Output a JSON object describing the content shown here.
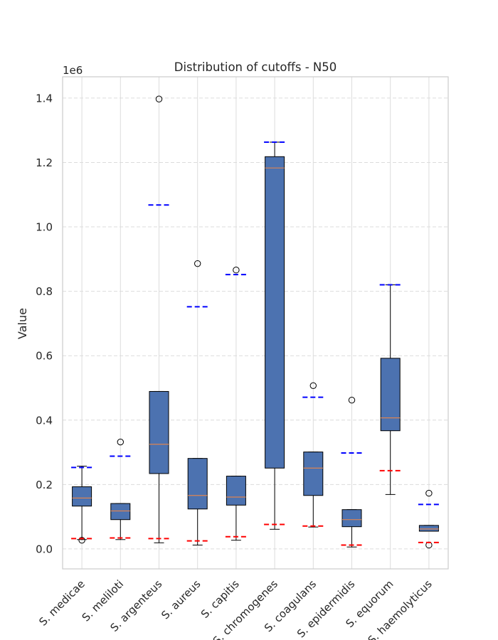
{
  "chart_data": {
    "type": "box",
    "title": "Distribution of cutoffs - N50",
    "ylabel": "Value",
    "xlabel": "",
    "offset_text": "1e6",
    "scale": 1000000,
    "ylim": [
      -0.062,
      1.466
    ],
    "yticks": [
      0.0,
      0.2,
      0.4,
      0.6,
      0.8,
      1.0,
      1.2,
      1.4
    ],
    "ytick_labels": [
      "0.0",
      "0.2",
      "0.4",
      "0.6",
      "0.8",
      "1.0",
      "1.2",
      "1.4"
    ],
    "grid": true,
    "colors": {
      "box_fill": "#4c72b0",
      "median": "#dd8452",
      "upper_marker": "#0000ff",
      "lower_marker": "#ff0000",
      "grid": "#dcdcdc",
      "frame": "#cccccc"
    },
    "categories": [
      "S. medicae",
      "S. meliloti",
      "S. argenteus",
      "S. aureus",
      "S. capitis",
      "S. chromogenes",
      "S. coagulans",
      "S. epidermidis",
      "S. equorum",
      "S. haemolyticus"
    ],
    "boxes": [
      {
        "whisker_low": 0.029,
        "q1": 0.133,
        "median": 0.158,
        "q3": 0.193,
        "whisker_high": 0.257,
        "outliers": [
          0.027
        ],
        "upper_marker": 0.253,
        "lower_marker": 0.032
      },
      {
        "whisker_low": 0.029,
        "q1": 0.091,
        "median": 0.118,
        "q3": 0.141,
        "whisker_high": 0.141,
        "outliers": [
          0.332
        ],
        "upper_marker": 0.288,
        "lower_marker": 0.034
      },
      {
        "whisker_low": 0.019,
        "q1": 0.234,
        "median": 0.325,
        "q3": 0.489,
        "whisker_high": 0.489,
        "outliers": [
          1.397
        ],
        "upper_marker": 1.068,
        "lower_marker": 0.032
      },
      {
        "whisker_low": 0.012,
        "q1": 0.124,
        "median": 0.166,
        "q3": 0.281,
        "whisker_high": 0.281,
        "outliers": [
          0.886
        ],
        "upper_marker": 0.752,
        "lower_marker": 0.025
      },
      {
        "whisker_low": 0.027,
        "q1": 0.136,
        "median": 0.161,
        "q3": 0.226,
        "whisker_high": 0.226,
        "outliers": [
          0.866
        ],
        "upper_marker": 0.852,
        "lower_marker": 0.038
      },
      {
        "whisker_low": 0.061,
        "q1": 0.251,
        "median": 1.183,
        "q3": 1.218,
        "whisker_high": 1.263,
        "outliers": [],
        "upper_marker": 1.263,
        "lower_marker": 0.076
      },
      {
        "whisker_low": 0.068,
        "q1": 0.166,
        "median": 0.251,
        "q3": 0.301,
        "whisker_high": 0.301,
        "outliers": [
          0.507
        ],
        "upper_marker": 0.471,
        "lower_marker": 0.071
      },
      {
        "whisker_low": 0.006,
        "q1": 0.069,
        "median": 0.091,
        "q3": 0.122,
        "whisker_high": 0.122,
        "outliers": [
          0.462
        ],
        "upper_marker": 0.298,
        "lower_marker": 0.012
      },
      {
        "whisker_low": 0.169,
        "q1": 0.367,
        "median": 0.407,
        "q3": 0.592,
        "whisker_high": 0.82,
        "outliers": [],
        "upper_marker": 0.82,
        "lower_marker": 0.243
      },
      {
        "whisker_low": 0.055,
        "q1": 0.055,
        "median": 0.062,
        "q3": 0.073,
        "whisker_high": 0.073,
        "outliers": [
          0.173,
          0.012
        ],
        "upper_marker": 0.138,
        "lower_marker": 0.02
      }
    ]
  }
}
